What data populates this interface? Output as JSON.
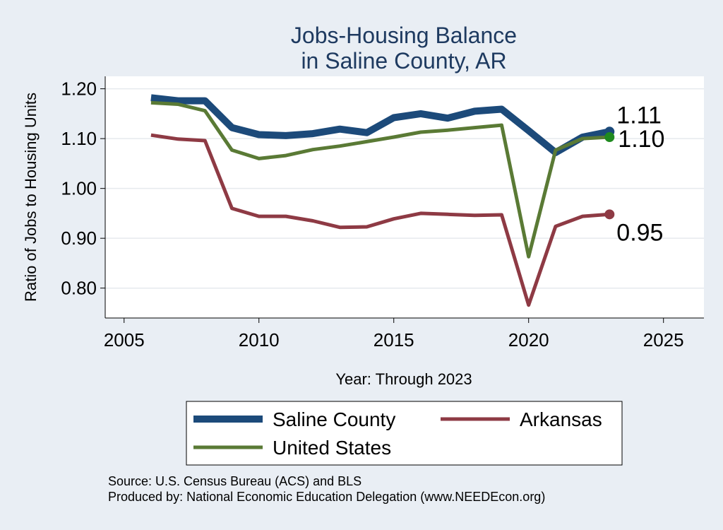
{
  "chart_data": {
    "type": "line",
    "title": [
      "Jobs-Housing Balance",
      "in Saline County, AR"
    ],
    "xlabel": "Year: Through 2023",
    "ylabel": "Ratio of Jobs to Housing Units",
    "xlim": [
      2004.3,
      2026.5
    ],
    "ylim": [
      0.74,
      1.225
    ],
    "xticks": [
      2005,
      2010,
      2015,
      2020,
      2025
    ],
    "yticks": [
      0.8,
      0.9,
      1.0,
      1.1,
      1.2
    ],
    "ytick_labels": [
      "0.80",
      "0.90",
      "1.00",
      "1.10",
      "1.20"
    ],
    "grid": true,
    "x": [
      2006,
      2007,
      2008,
      2009,
      2010,
      2011,
      2012,
      2013,
      2014,
      2015,
      2016,
      2017,
      2018,
      2019,
      2020,
      2021,
      2022,
      2023
    ],
    "series": [
      {
        "name": "Saline County",
        "color": "#1c4a7a",
        "values": [
          1.182,
          1.176,
          1.176,
          1.122,
          1.108,
          1.106,
          1.11,
          1.119,
          1.112,
          1.142,
          1.15,
          1.141,
          1.155,
          1.159,
          1.116,
          1.072,
          1.103,
          1.114
        ],
        "end_label": "1.11"
      },
      {
        "name": "Arkansas",
        "color": "#8e3a44",
        "values": [
          1.107,
          1.099,
          1.096,
          0.96,
          0.944,
          0.944,
          0.935,
          0.922,
          0.923,
          0.939,
          0.95,
          0.948,
          0.946,
          0.947,
          0.766,
          0.924,
          0.944,
          0.948
        ],
        "end_label": "0.95"
      },
      {
        "name": "United States",
        "color": "#5a7a35",
        "values": [
          1.172,
          1.169,
          1.156,
          1.077,
          1.06,
          1.066,
          1.078,
          1.085,
          1.094,
          1.103,
          1.113,
          1.117,
          1.122,
          1.127,
          0.863,
          1.077,
          1.1,
          1.103
        ],
        "end_label": "1.10"
      }
    ],
    "legend": {
      "placement": "bottom",
      "order": [
        "Saline County",
        "Arkansas",
        "United States"
      ]
    }
  },
  "footer": {
    "source": "Source: U.S. Census Bureau (ACS) and BLS",
    "produced": "Produced by: National Economic Education Delegation (www.NEEDEcon.org)"
  }
}
